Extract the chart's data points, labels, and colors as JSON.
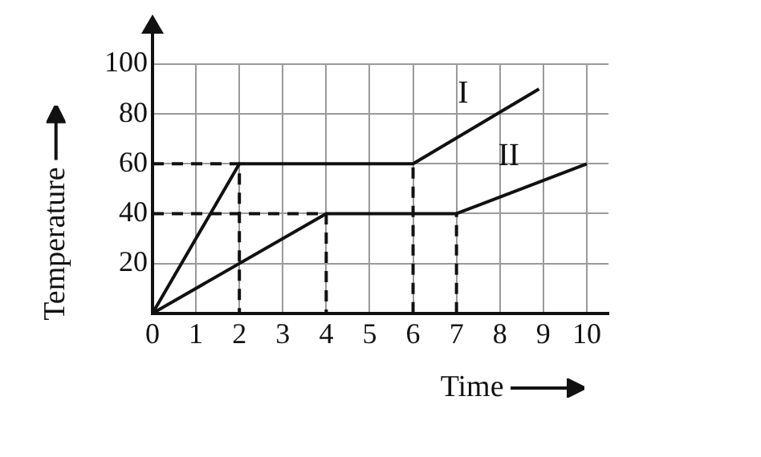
{
  "chart_data": {
    "type": "line",
    "xlabel": "Time",
    "ylabel": "Temperature",
    "xlim": [
      0,
      10.5
    ],
    "ylim": [
      0,
      100
    ],
    "xticks": [
      0,
      1,
      2,
      3,
      4,
      5,
      6,
      7,
      8,
      9,
      10
    ],
    "yticks": [
      {
        "value": 0,
        "label": null
      },
      20,
      40,
      60,
      80,
      100
    ],
    "grid": true,
    "legend": false,
    "marker": "none",
    "series": [
      {
        "name": "I",
        "color": "#111111",
        "x": [
          0,
          2,
          6,
          8.9
        ],
        "values": [
          0,
          60,
          60,
          90
        ]
      },
      {
        "name": "II",
        "color": "#111111",
        "x": [
          0,
          4,
          7,
          10
        ],
        "values": [
          0,
          40,
          40,
          60
        ]
      },
      {
        "type": "line",
        "line_style": "dashed",
        "color": "#111111",
        "x": [
          0,
          2,
          2
        ],
        "values": [
          60,
          60,
          0
        ]
      },
      {
        "type": "line",
        "line_style": "dashed",
        "color": "#111111",
        "x": [
          0,
          4,
          4
        ],
        "values": [
          40,
          40,
          0
        ]
      },
      {
        "type": "line",
        "line_style": "dashed",
        "color": "#111111",
        "x": [
          6,
          6
        ],
        "values": [
          0,
          60
        ]
      },
      {
        "type": "line",
        "line_style": "dashed",
        "color": "#111111",
        "x": [
          7,
          7
        ],
        "values": [
          0,
          40
        ]
      }
    ]
  }
}
